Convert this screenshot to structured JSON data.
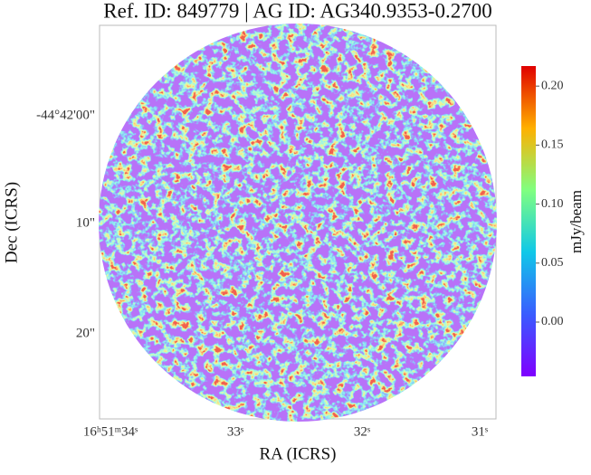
{
  "chart_data": {
    "type": "image",
    "title": "Ref. ID: 849779 | AG ID: AG340.9353-0.2700",
    "xlabel": "RA (ICRS)",
    "ylabel": "Dec (ICRS)",
    "xtick_labels": [
      "16ʰ51ᵐ34ˢ",
      "33ˢ",
      "32ˢ",
      "31ˢ"
    ],
    "ytick_labels": [
      "-44°42'00\"",
      "10\"",
      "20\""
    ],
    "colorbar": {
      "label": "mJy/beam",
      "lim": [
        -0.046,
        0.217
      ],
      "ticks": [
        {
          "value": 0,
          "label": "0.00"
        },
        0.05,
        {
          "value": 0.1,
          "label": "0.10"
        },
        0.15,
        {
          "value": 0.2,
          "label": "0.20"
        }
      ]
    }
  }
}
